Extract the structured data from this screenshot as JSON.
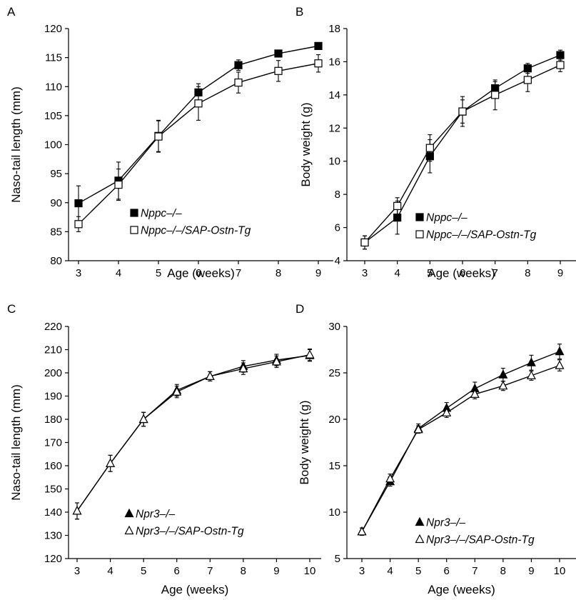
{
  "chart_data": [
    {
      "panel": "A",
      "type": "line",
      "ylabel": "Naso-tail length (mm)",
      "xlabel": "Age (weeks)",
      "x": [
        3,
        4,
        5,
        6,
        7,
        8,
        9
      ],
      "xticks": [
        "3",
        "4",
        "5",
        "6",
        "7",
        "8",
        "9"
      ],
      "ylim": [
        80,
        120
      ],
      "yticks": [
        "80",
        "85",
        "90",
        "95",
        "100",
        "105",
        "110",
        "115",
        "120"
      ],
      "legend_position": "lower-right",
      "series": [
        {
          "name": "Nppc–/–",
          "marker": "square-filled",
          "values": [
            89.9,
            93.8,
            101.5,
            109.0,
            113.7,
            115.7,
            117.0
          ],
          "errors": [
            3.0,
            3.2,
            2.7,
            1.5,
            0.9,
            0.6,
            0.5
          ]
        },
        {
          "name": "Nppc–/–/SAP-Ostn-Tg",
          "marker": "square-open",
          "values": [
            86.3,
            93.1,
            101.4,
            107.1,
            110.7,
            112.7,
            114.0
          ],
          "errors": [
            1.3,
            2.7,
            2.7,
            2.9,
            1.8,
            1.8,
            1.5
          ]
        }
      ]
    },
    {
      "panel": "B",
      "type": "line",
      "ylabel": "Body weight (g)",
      "xlabel": "Age (weeks)",
      "x": [
        3,
        4,
        5,
        6,
        7,
        8,
        9
      ],
      "xticks": [
        "3",
        "4",
        "5",
        "6",
        "7",
        "8",
        "9"
      ],
      "ylim": [
        4,
        18
      ],
      "yticks": [
        "4",
        "6",
        "8",
        "10",
        "12",
        "14",
        "16",
        "18"
      ],
      "legend_position": "lower-right",
      "series": [
        {
          "name": "Nppc–/–",
          "marker": "square-filled",
          "values": [
            5.1,
            6.6,
            10.3,
            13.0,
            14.4,
            15.6,
            16.4
          ],
          "errors": [
            0.4,
            1.0,
            1.0,
            0.7,
            0.4,
            0.3,
            0.3
          ]
        },
        {
          "name": "Nppc–/–/SAP-Ostn-Tg",
          "marker": "square-open",
          "values": [
            5.1,
            7.3,
            10.8,
            13.0,
            14.0,
            14.9,
            15.8
          ],
          "errors": [
            0.4,
            0.5,
            0.8,
            0.9,
            0.9,
            0.7,
            0.4
          ]
        }
      ]
    },
    {
      "panel": "C",
      "type": "line",
      "ylabel": "Naso-tail length (mm)",
      "xlabel": "Age (weeks)",
      "x": [
        3,
        4,
        5,
        6,
        7,
        8,
        9,
        10
      ],
      "xticks": [
        "3",
        "4",
        "5",
        "6",
        "7",
        "8",
        "9",
        "10"
      ],
      "ylim": [
        120,
        220
      ],
      "yticks": [
        "120",
        "130",
        "140",
        "150",
        "160",
        "170",
        "180",
        "190",
        "200",
        "210",
        "220"
      ],
      "legend_position": "lower-right",
      "series": [
        {
          "name": "Npr3–/–",
          "marker": "triangle-filled",
          "values": [
            140.5,
            161.0,
            180.0,
            192.5,
            198.5,
            202.8,
            205.5,
            207.5
          ],
          "errors": [
            3.5,
            3.5,
            3.0,
            2.5,
            2.0,
            2.5,
            2.5,
            2.5
          ]
        },
        {
          "name": "Npr3–/–/SAP-Ostn-Tg",
          "marker": "triangle-open",
          "values": [
            140.5,
            161.0,
            180.0,
            191.8,
            198.5,
            201.8,
            204.8,
            207.8
          ],
          "errors": [
            3.5,
            3.5,
            3.0,
            2.5,
            2.0,
            2.5,
            2.5,
            2.5
          ]
        }
      ]
    },
    {
      "panel": "D",
      "type": "line",
      "ylabel": "Body weight (g)",
      "xlabel": "Age (weeks)",
      "x": [
        3,
        4,
        5,
        6,
        7,
        8,
        9,
        10
      ],
      "xticks": [
        "3",
        "4",
        "5",
        "6",
        "7",
        "8",
        "9",
        "10"
      ],
      "ylim": [
        5,
        30
      ],
      "yticks": [
        "5",
        "10",
        "15",
        "20",
        "25",
        "30"
      ],
      "legend_position": "lower-right",
      "series": [
        {
          "name": "Npr3–/–",
          "marker": "triangle-filled",
          "values": [
            7.9,
            13.3,
            19.0,
            21.2,
            23.3,
            24.8,
            26.1,
            27.3
          ],
          "errors": [
            0.4,
            0.5,
            0.5,
            0.6,
            0.7,
            0.7,
            0.8,
            0.8
          ]
        },
        {
          "name": "Npr3–/–/SAP-Ostn-Tg",
          "marker": "triangle-open",
          "values": [
            7.9,
            13.6,
            18.9,
            20.7,
            22.7,
            23.6,
            24.7,
            25.8
          ],
          "errors": [
            0.4,
            0.5,
            0.4,
            0.5,
            0.5,
            0.5,
            0.5,
            0.6
          ]
        }
      ]
    }
  ]
}
